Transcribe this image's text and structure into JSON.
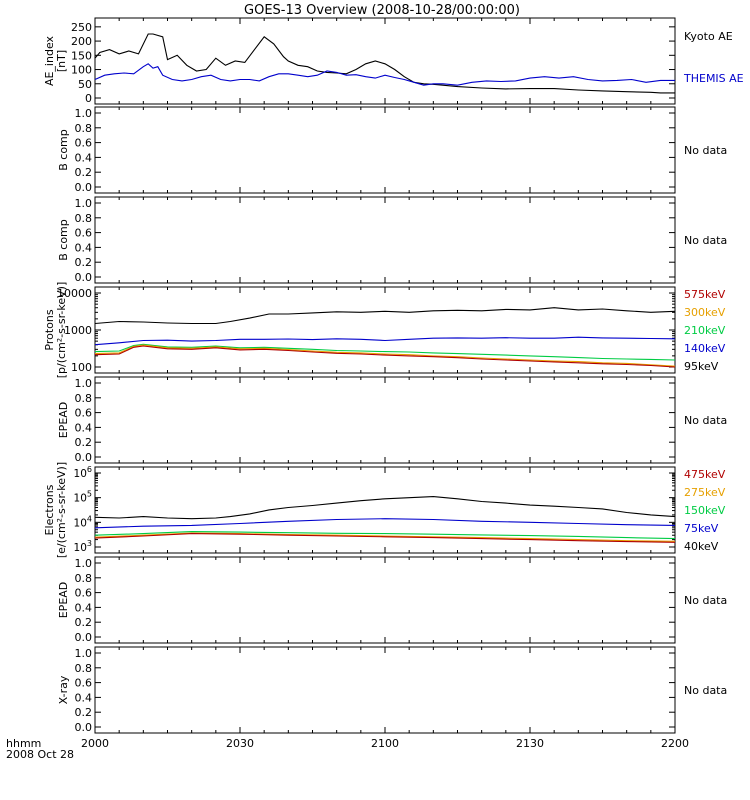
{
  "title": "GOES-13 Overview (2008-10-28/00:00:00)",
  "footer": {
    "time_format": "hhmm",
    "date": "2008 Oct 28"
  },
  "x_axis": {
    "range": [
      "20:00",
      "22:00"
    ],
    "ticks": [
      {
        "t": 0,
        "label": "2000"
      },
      {
        "t": 30,
        "label": "2030"
      },
      {
        "t": 60,
        "label": "2100"
      },
      {
        "t": 90,
        "label": "2130"
      },
      {
        "t": 120,
        "label": "2200"
      }
    ]
  },
  "no_data_label": "No data",
  "chart_data": [
    {
      "id": "ae",
      "type": "line",
      "ylabel_lines": [
        "AE_index",
        "[nT]"
      ],
      "yscale": "linear",
      "ylim": [
        0,
        260
      ],
      "yticks": [
        {
          "v": 0,
          "label": "0"
        },
        {
          "v": 50,
          "label": "50"
        },
        {
          "v": 100,
          "label": "100"
        },
        {
          "v": 150,
          "label": "150"
        },
        {
          "v": 200,
          "label": "200"
        },
        {
          "v": 250,
          "label": "250"
        }
      ],
      "series": [
        {
          "name": "Kyoto AE",
          "color": "#000000",
          "x": [
            0,
            1,
            3,
            5,
            7,
            9,
            11,
            12,
            14,
            15,
            17,
            19,
            21,
            23,
            25,
            27,
            29,
            31,
            33,
            35,
            37,
            39,
            40,
            42,
            44,
            46,
            48,
            50,
            52,
            54,
            56,
            58,
            60,
            62,
            64,
            66,
            68,
            70,
            75,
            80,
            85,
            90,
            95,
            100,
            105,
            110,
            115,
            117,
            120
          ],
          "y": [
            140,
            160,
            170,
            155,
            165,
            155,
            225,
            225,
            215,
            135,
            150,
            115,
            95,
            100,
            140,
            115,
            130,
            125,
            170,
            215,
            190,
            145,
            130,
            115,
            110,
            95,
            90,
            88,
            85,
            100,
            120,
            130,
            120,
            100,
            75,
            55,
            50,
            48,
            40,
            35,
            32,
            33,
            33,
            28,
            25,
            22,
            20,
            18,
            18
          ]
        },
        {
          "name": "THEMIS AE",
          "color": "#0000cc",
          "x": [
            0,
            2,
            4,
            6,
            8,
            10,
            11,
            12,
            13,
            14,
            16,
            18,
            20,
            22,
            24,
            26,
            28,
            30,
            32,
            34,
            36,
            38,
            40,
            42,
            44,
            46,
            48,
            50,
            52,
            54,
            56,
            58,
            60,
            62,
            64,
            66,
            68,
            70,
            72,
            75,
            78,
            81,
            84,
            87,
            90,
            93,
            96,
            99,
            102,
            105,
            108,
            111,
            114,
            117,
            120
          ],
          "y": [
            65,
            80,
            85,
            88,
            85,
            110,
            120,
            105,
            110,
            80,
            65,
            60,
            65,
            75,
            80,
            65,
            60,
            65,
            65,
            60,
            75,
            85,
            85,
            80,
            75,
            80,
            95,
            90,
            80,
            82,
            75,
            70,
            80,
            72,
            65,
            55,
            45,
            50,
            50,
            45,
            55,
            60,
            58,
            60,
            70,
            75,
            70,
            75,
            65,
            60,
            62,
            65,
            55,
            62,
            62
          ]
        }
      ]
    },
    {
      "id": "bcomp1",
      "type": "line",
      "ylabel_lines": [
        "B comp"
      ],
      "yscale": "linear",
      "ylim": [
        0,
        1
      ],
      "yticks": [
        {
          "v": 0,
          "label": "0.0"
        },
        {
          "v": 0.2,
          "label": "0.2"
        },
        {
          "v": 0.4,
          "label": "0.4"
        },
        {
          "v": 0.6,
          "label": "0.6"
        },
        {
          "v": 0.8,
          "label": "0.8"
        },
        {
          "v": 1.0,
          "label": "1.0"
        }
      ],
      "no_data": true,
      "series": []
    },
    {
      "id": "bcomp2",
      "type": "line",
      "ylabel_lines": [
        "B comp"
      ],
      "yscale": "linear",
      "ylim": [
        0,
        1
      ],
      "yticks": [
        {
          "v": 0,
          "label": "0.0"
        },
        {
          "v": 0.2,
          "label": "0.2"
        },
        {
          "v": 0.4,
          "label": "0.4"
        },
        {
          "v": 0.6,
          "label": "0.6"
        },
        {
          "v": 0.8,
          "label": "0.8"
        },
        {
          "v": 1.0,
          "label": "1.0"
        }
      ],
      "no_data": true,
      "series": []
    },
    {
      "id": "protons",
      "type": "line",
      "ylabel_lines": [
        "Protons",
        "[p/(cm²-s-sr-keV)]"
      ],
      "yscale": "log",
      "ylim": [
        100,
        10000
      ],
      "yticks": [
        {
          "v": 100,
          "label": "100"
        },
        {
          "v": 1000,
          "label": "1000"
        },
        {
          "v": 10000,
          "label": "10000"
        }
      ],
      "series": [
        {
          "name": "95keV",
          "color": "#000000",
          "x": [
            0,
            5,
            10,
            15,
            20,
            25,
            28,
            32,
            36,
            40,
            45,
            50,
            55,
            60,
            65,
            70,
            75,
            80,
            85,
            90,
            95,
            100,
            105,
            110,
            115,
            120
          ],
          "y": [
            1500,
            1700,
            1650,
            1550,
            1500,
            1500,
            1700,
            2100,
            2700,
            2700,
            2900,
            3100,
            3000,
            3200,
            3000,
            3300,
            3400,
            3300,
            3600,
            3500,
            4000,
            3500,
            3700,
            3300,
            3000,
            3200
          ]
        },
        {
          "name": "140keV",
          "color": "#0000cc",
          "x": [
            0,
            5,
            10,
            15,
            20,
            25,
            30,
            35,
            40,
            45,
            50,
            55,
            60,
            65,
            70,
            75,
            80,
            85,
            90,
            95,
            100,
            105,
            110,
            115,
            120
          ],
          "y": [
            400,
            450,
            520,
            530,
            500,
            520,
            560,
            560,
            570,
            550,
            580,
            560,
            520,
            560,
            600,
            610,
            600,
            620,
            600,
            600,
            640,
            610,
            600,
            590,
            580
          ]
        },
        {
          "name": "210keV",
          "color": "#00cc44",
          "x": [
            0,
            5,
            8,
            10,
            15,
            20,
            25,
            30,
            35,
            40,
            45,
            50,
            55,
            60,
            65,
            70,
            75,
            80,
            85,
            90,
            95,
            100,
            105,
            110,
            115,
            120
          ],
          "y": [
            260,
            270,
            380,
            410,
            350,
            340,
            370,
            330,
            340,
            320,
            300,
            280,
            270,
            260,
            255,
            240,
            230,
            220,
            210,
            200,
            190,
            180,
            170,
            165,
            160,
            155
          ]
        },
        {
          "name": "300keV",
          "color": "#e6a000",
          "x": [
            0,
            5,
            8,
            10,
            15,
            20,
            25,
            30,
            35,
            40,
            45,
            50,
            55,
            60,
            65,
            70,
            75,
            80,
            85,
            90,
            95,
            100,
            105,
            110,
            115,
            120
          ],
          "y": [
            230,
            240,
            360,
            390,
            330,
            320,
            350,
            310,
            320,
            295,
            270,
            250,
            240,
            225,
            215,
            200,
            190,
            175,
            165,
            155,
            145,
            140,
            130,
            125,
            115,
            105
          ]
        },
        {
          "name": "575keV",
          "color": "#b00000",
          "x": [
            0,
            5,
            8,
            10,
            15,
            20,
            25,
            30,
            35,
            40,
            45,
            50,
            55,
            60,
            65,
            70,
            75,
            80,
            85,
            90,
            95,
            100,
            105,
            110,
            115,
            120
          ],
          "y": [
            215,
            225,
            340,
            370,
            310,
            300,
            330,
            290,
            300,
            280,
            255,
            235,
            225,
            210,
            200,
            190,
            178,
            165,
            155,
            145,
            137,
            130,
            122,
            117,
            110,
            100
          ]
        }
      ]
    },
    {
      "id": "epead1",
      "type": "line",
      "ylabel_lines": [
        "EPEAD"
      ],
      "yscale": "linear",
      "ylim": [
        0,
        1
      ],
      "yticks": [
        {
          "v": 0,
          "label": "0.0"
        },
        {
          "v": 0.2,
          "label": "0.2"
        },
        {
          "v": 0.4,
          "label": "0.4"
        },
        {
          "v": 0.6,
          "label": "0.6"
        },
        {
          "v": 0.8,
          "label": "0.8"
        },
        {
          "v": 1.0,
          "label": "1.0"
        }
      ],
      "no_data": true,
      "series": []
    },
    {
      "id": "electrons",
      "type": "line",
      "ylabel_lines": [
        "Electrons",
        "[e/(cm²-s-sr-keV)]"
      ],
      "yscale": "log",
      "ylim": [
        1000,
        1000000
      ],
      "yticks": [
        {
          "v": 1000,
          "base": "10",
          "exp": "3"
        },
        {
          "v": 10000,
          "base": "10",
          "exp": "4"
        },
        {
          "v": 100000,
          "base": "10",
          "exp": "5"
        },
        {
          "v": 1000000,
          "base": "10",
          "exp": "6"
        }
      ],
      "series": [
        {
          "name": "40keV",
          "color": "#000000",
          "x": [
            0,
            5,
            10,
            15,
            20,
            25,
            28,
            32,
            36,
            40,
            45,
            50,
            55,
            60,
            65,
            70,
            75,
            80,
            85,
            90,
            95,
            100,
            105,
            110,
            115,
            120
          ],
          "y": [
            16000,
            15000,
            17000,
            15000,
            14000,
            15000,
            17000,
            22000,
            32000,
            40000,
            48000,
            60000,
            75000,
            90000,
            100000,
            110000,
            90000,
            70000,
            60000,
            50000,
            45000,
            40000,
            35000,
            25000,
            20000,
            17000
          ]
        },
        {
          "name": "75keV",
          "color": "#0000cc",
          "x": [
            0,
            10,
            20,
            30,
            40,
            50,
            60,
            70,
            80,
            90,
            100,
            110,
            120
          ],
          "y": [
            6000,
            7000,
            7500,
            9000,
            11000,
            13000,
            14000,
            13000,
            11000,
            10000,
            9000,
            8000,
            7500
          ]
        },
        {
          "name": "150keV",
          "color": "#00cc44",
          "x": [
            0,
            10,
            20,
            30,
            40,
            50,
            60,
            70,
            80,
            90,
            100,
            110,
            120
          ],
          "y": [
            3000,
            3500,
            4200,
            4000,
            3800,
            3600,
            3500,
            3300,
            3100,
            2900,
            2700,
            2400,
            2200
          ]
        },
        {
          "name": "275keV",
          "color": "#e6a000",
          "x": [
            0,
            10,
            20,
            30,
            40,
            50,
            60,
            70,
            80,
            90,
            100,
            110,
            120
          ],
          "y": [
            2500,
            3000,
            3700,
            3500,
            3200,
            3000,
            2800,
            2600,
            2400,
            2200,
            2000,
            1800,
            1700
          ]
        },
        {
          "name": "475keV",
          "color": "#b00000",
          "x": [
            0,
            10,
            20,
            30,
            40,
            50,
            60,
            70,
            80,
            90,
            100,
            110,
            120
          ],
          "y": [
            2300,
            2800,
            3500,
            3300,
            3000,
            2800,
            2600,
            2400,
            2200,
            2000,
            1800,
            1650,
            1550
          ]
        }
      ]
    },
    {
      "id": "epead2",
      "type": "line",
      "ylabel_lines": [
        "EPEAD"
      ],
      "yscale": "linear",
      "ylim": [
        0,
        1
      ],
      "yticks": [
        {
          "v": 0,
          "label": "0.0"
        },
        {
          "v": 0.2,
          "label": "0.2"
        },
        {
          "v": 0.4,
          "label": "0.4"
        },
        {
          "v": 0.6,
          "label": "0.6"
        },
        {
          "v": 0.8,
          "label": "0.8"
        },
        {
          "v": 1.0,
          "label": "1.0"
        }
      ],
      "no_data": true,
      "series": []
    },
    {
      "id": "xray",
      "type": "line",
      "ylabel_lines": [
        "X-ray"
      ],
      "yscale": "linear",
      "ylim": [
        0,
        1
      ],
      "yticks": [
        {
          "v": 0,
          "label": "0.0"
        },
        {
          "v": 0.2,
          "label": "0.2"
        },
        {
          "v": 0.4,
          "label": "0.4"
        },
        {
          "v": 0.6,
          "label": "0.6"
        },
        {
          "v": 0.8,
          "label": "0.8"
        },
        {
          "v": 1.0,
          "label": "1.0"
        }
      ],
      "no_data": true,
      "series": []
    }
  ]
}
